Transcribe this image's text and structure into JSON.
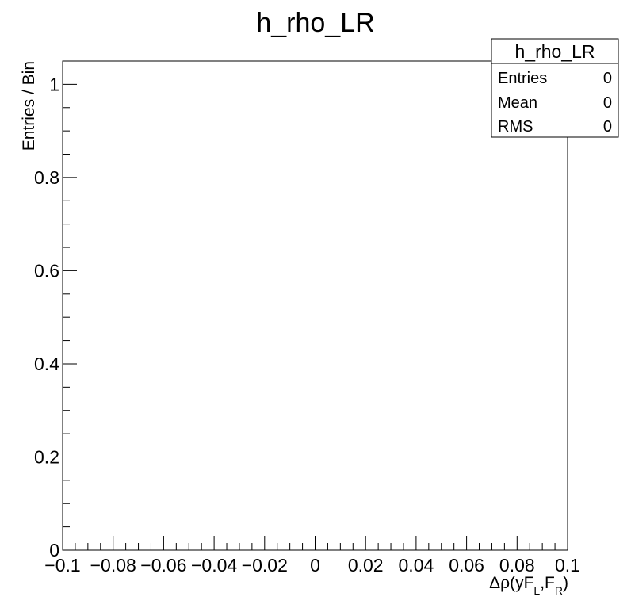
{
  "chart_data": {
    "type": "bar",
    "title": "h_rho_LR",
    "xlabel": {
      "prefix": "Δρ(yF",
      "sub1": "L",
      "mid": ",F",
      "sub2": "R",
      "suffix": ")"
    },
    "ylabel": "Entries / Bin",
    "xlim": [
      -0.1,
      0.1
    ],
    "ylim": [
      0,
      1.05
    ],
    "x_ticks": [
      {
        "value": -0.1,
        "label": "−0.1"
      },
      {
        "value": -0.08,
        "label": "−0.08"
      },
      {
        "value": -0.06,
        "label": "−0.06"
      },
      {
        "value": -0.04,
        "label": "−0.04"
      },
      {
        "value": -0.02,
        "label": "−0.02"
      },
      {
        "value": 0,
        "label": "0"
      },
      {
        "value": 0.02,
        "label": "0.02"
      },
      {
        "value": 0.04,
        "label": "0.04"
      },
      {
        "value": 0.06,
        "label": "0.06"
      },
      {
        "value": 0.08,
        "label": "0.08"
      },
      {
        "value": 0.1,
        "label": "0.1"
      }
    ],
    "y_ticks": [
      {
        "value": 0,
        "label": "0"
      },
      {
        "value": 0.2,
        "label": "0.2"
      },
      {
        "value": 0.4,
        "label": "0.4"
      },
      {
        "value": 0.6,
        "label": "0.6"
      },
      {
        "value": 0.8,
        "label": "0.8"
      },
      {
        "value": 1,
        "label": "1"
      }
    ],
    "x_minor_step": 0.005,
    "y_minor_step": 0.05,
    "values": [],
    "grid": false,
    "stats_box": {
      "title": "h_rho_LR",
      "rows": [
        {
          "label": "Entries",
          "value": "0"
        },
        {
          "label": "Mean",
          "value": "0"
        },
        {
          "label": "RMS",
          "value": "0"
        }
      ]
    }
  }
}
